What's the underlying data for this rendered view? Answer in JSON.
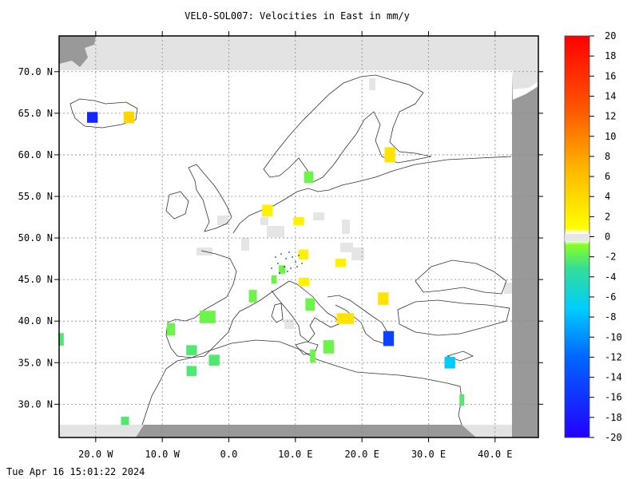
{
  "title": "VEL0-SOL007: Velocities in East in mm/y",
  "footer": "Tue Apr 16 15:01:22 2024",
  "map": {
    "lon_range": [
      -25.5,
      46.5
    ],
    "lat_range": [
      26,
      74.3
    ],
    "lat_labels": [
      {
        "lat": 70,
        "text": "70.0 N"
      },
      {
        "lat": 65,
        "text": "65.0 N"
      },
      {
        "lat": 60,
        "text": "60.0 N"
      },
      {
        "lat": 55,
        "text": "55.0 N"
      },
      {
        "lat": 50,
        "text": "50.0 N"
      },
      {
        "lat": 45,
        "text": "45.0 N"
      },
      {
        "lat": 40,
        "text": "40.0 N"
      },
      {
        "lat": 35,
        "text": "35.0 N"
      },
      {
        "lat": 30,
        "text": "30.0 N"
      }
    ],
    "lon_labels": [
      {
        "lon": -20,
        "text": "20.0 W"
      },
      {
        "lon": -10,
        "text": "10.0 W"
      },
      {
        "lon": 0,
        "text": "0.0"
      },
      {
        "lon": 10,
        "text": "10.0 E"
      },
      {
        "lon": 20,
        "text": "20.0 E"
      },
      {
        "lon": 30,
        "text": "30.0 E"
      },
      {
        "lon": 40,
        "text": "40.0 E"
      }
    ]
  },
  "colorbar": {
    "min": -20,
    "max": 20,
    "tick_labels": [
      "20",
      "18",
      "16",
      "14",
      "12",
      "10",
      "8",
      "6",
      "4",
      "2",
      "0",
      "-2",
      "-4",
      "-6",
      "-8",
      "-10",
      "-12",
      "-14",
      "-16",
      "-18",
      "-20"
    ]
  },
  "cells": [
    {
      "lon": -20.5,
      "lat": 64.5,
      "w": 1.6,
      "h": 1.3,
      "v": -17
    },
    {
      "lon": -15.0,
      "lat": 64.5,
      "w": 1.6,
      "h": 1.4,
      "v": 4
    },
    {
      "lon": 24.2,
      "lat": 60.0,
      "w": 1.6,
      "h": 1.8,
      "v": 3
    },
    {
      "lon": 12.0,
      "lat": 57.3,
      "w": 1.4,
      "h": 1.4,
      "v": -2
    },
    {
      "lon": 5.8,
      "lat": 53.3,
      "w": 1.6,
      "h": 1.4,
      "v": 2
    },
    {
      "lon": 10.5,
      "lat": 52.0,
      "w": 1.6,
      "h": 1.0,
      "v": 2
    },
    {
      "lon": 11.2,
      "lat": 48.0,
      "w": 1.5,
      "h": 1.2,
      "v": 2
    },
    {
      "lon": 16.8,
      "lat": 47.0,
      "w": 1.6,
      "h": 1.0,
      "v": 2
    },
    {
      "lon": 8.0,
      "lat": 46.2,
      "w": 1.0,
      "h": 1.0,
      "v": -2
    },
    {
      "lon": 6.8,
      "lat": 45.0,
      "w": 0.8,
      "h": 1.0,
      "v": -2
    },
    {
      "lon": 11.3,
      "lat": 44.7,
      "w": 1.6,
      "h": 1.0,
      "v": 2
    },
    {
      "lon": 3.6,
      "lat": 43.0,
      "w": 1.2,
      "h": 1.5,
      "v": -2
    },
    {
      "lon": 12.2,
      "lat": 42.0,
      "w": 1.4,
      "h": 1.5,
      "v": -2
    },
    {
      "lon": 23.2,
      "lat": 42.7,
      "w": 1.6,
      "h": 1.5,
      "v": 3
    },
    {
      "lon": 17.5,
      "lat": 40.3,
      "w": 2.6,
      "h": 1.3,
      "v": 3
    },
    {
      "lon": -3.2,
      "lat": 40.5,
      "w": 2.4,
      "h": 1.5,
      "v": -2
    },
    {
      "lon": -8.7,
      "lat": 39.0,
      "w": 1.2,
      "h": 1.5,
      "v": -2
    },
    {
      "lon": -5.6,
      "lat": 36.5,
      "w": 1.6,
      "h": 1.2,
      "v": -3
    },
    {
      "lon": -2.2,
      "lat": 35.3,
      "w": 1.6,
      "h": 1.3,
      "v": -3
    },
    {
      "lon": -5.6,
      "lat": 34.0,
      "w": 1.5,
      "h": 1.2,
      "v": -3
    },
    {
      "lon": 15.0,
      "lat": 36.9,
      "w": 1.6,
      "h": 1.6,
      "v": -2
    },
    {
      "lon": 12.6,
      "lat": 35.8,
      "w": 0.8,
      "h": 1.6,
      "v": -2
    },
    {
      "lon": 24.0,
      "lat": 37.9,
      "w": 1.6,
      "h": 1.8,
      "v": -15
    },
    {
      "lon": 33.2,
      "lat": 35.0,
      "w": 1.6,
      "h": 1.4,
      "v": -8
    },
    {
      "lon": 35.0,
      "lat": 30.5,
      "w": 0.7,
      "h": 1.4,
      "v": -3
    },
    {
      "lon": -15.6,
      "lat": 28.0,
      "w": 1.2,
      "h": 1.0,
      "v": -3
    },
    {
      "lon": -25.2,
      "lat": 37.8,
      "w": 0.8,
      "h": 1.5,
      "v": -3
    }
  ]
}
